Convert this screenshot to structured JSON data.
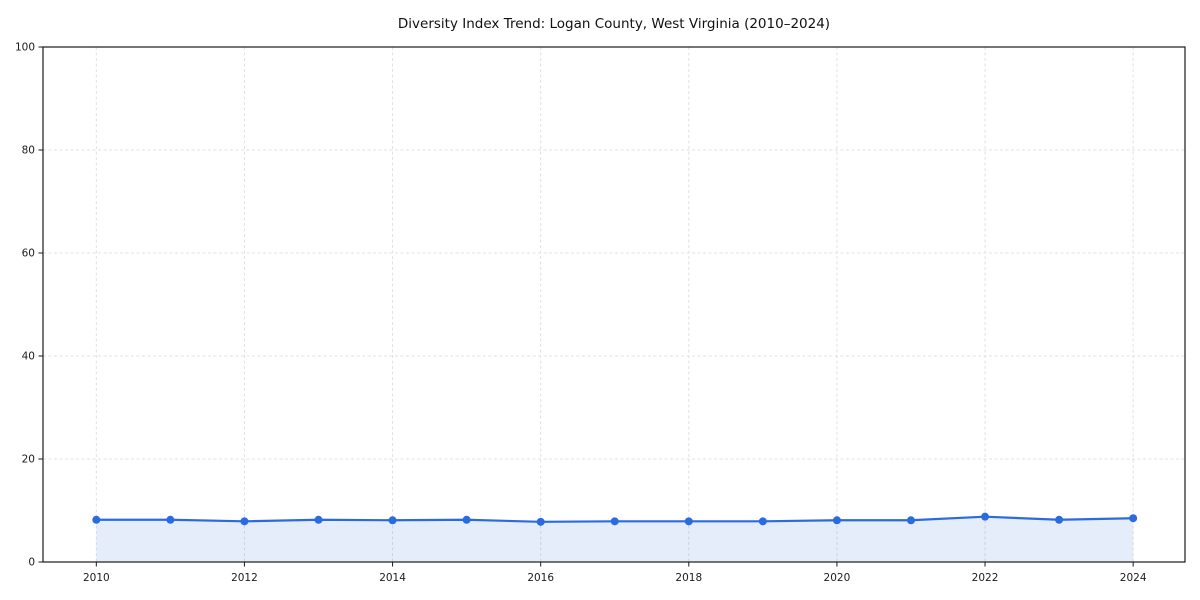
{
  "figure": {
    "background": "#ffffff"
  },
  "chart_data": {
    "type": "line",
    "title": "Diversity Index Trend: Logan County, West Virginia (2010–2024)",
    "xlabel": "",
    "ylabel": "",
    "x": [
      2010,
      2011,
      2012,
      2013,
      2014,
      2015,
      2016,
      2017,
      2018,
      2019,
      2020,
      2021,
      2022,
      2023,
      2024
    ],
    "series": [
      {
        "name": "Diversity Index",
        "values": [
          8.2,
          8.2,
          7.9,
          8.2,
          8.1,
          8.2,
          7.8,
          7.9,
          7.9,
          7.9,
          8.1,
          8.1,
          8.8,
          8.2,
          8.5
        ]
      }
    ],
    "ylim": [
      0,
      100
    ],
    "xlim": [
      2009.28,
      2024.7
    ],
    "x_ticks": [
      2010,
      2012,
      2014,
      2016,
      2018,
      2020,
      2022,
      2024
    ],
    "y_ticks": [
      0,
      20,
      40,
      60,
      80,
      100
    ],
    "grid": true,
    "grid_style": "dashed",
    "legend": "none",
    "marker": "circle",
    "fill": "area-to-zero",
    "line_color": "#2a6cdf",
    "fill_color": "#2a6cdf",
    "fill_opacity": 0.12,
    "grid_color": "#e1e1e1",
    "spine_color": "#1a1a1a",
    "tick_color": "#1a1a1a",
    "tick_label_color": "#1c1c1c",
    "title_color": "#111111"
  }
}
